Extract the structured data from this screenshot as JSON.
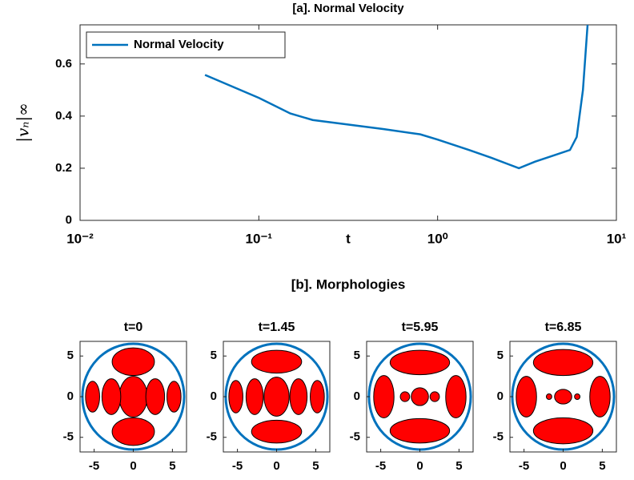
{
  "chart_data": [
    {
      "type": "line",
      "title": "[a]. Normal Velocity",
      "x_label": "t",
      "y_label": "|vₙ|∞",
      "x_scale": "log",
      "xlim": [
        0.01,
        10
      ],
      "xticks": [
        {
          "value": 0.01,
          "label": "10⁻²"
        },
        {
          "value": 0.1,
          "label": "10⁻¹"
        },
        {
          "value": 1,
          "label": "10⁰"
        },
        {
          "value": 10,
          "label": "10¹"
        }
      ],
      "ylim": [
        0,
        0.75
      ],
      "yticks": [
        0,
        0.2,
        0.4,
        0.6
      ],
      "legend": "upper left",
      "x": [
        0.05,
        0.1,
        0.15,
        0.2,
        0.5,
        0.8,
        1.0,
        1.5,
        2.0,
        2.85,
        3.5,
        4.5,
        5.5,
        6.0,
        6.5,
        6.9
      ],
      "series": [
        {
          "name": "Normal Velocity",
          "color": "#0072bd",
          "values": [
            0.558,
            0.47,
            0.41,
            0.385,
            0.35,
            0.33,
            0.31,
            0.27,
            0.24,
            0.2,
            0.225,
            0.25,
            0.27,
            0.32,
            0.5,
            0.75
          ]
        }
      ]
    },
    {
      "type": "morphology",
      "title": "t=0",
      "xlim": [
        -6.8,
        6.8
      ],
      "ylim": [
        -6.8,
        6.8
      ],
      "xticks": [
        -5,
        0,
        5
      ],
      "yticks": [
        -5,
        0,
        5
      ],
      "boundary_radius": 6.5,
      "boundary_color": "#0072bd",
      "color": "#ff0000",
      "blobs": [
        {
          "cx": 0,
          "cy": 4.3,
          "rx": 2.7,
          "ry": 1.7
        },
        {
          "cx": 0,
          "cy": -4.3,
          "rx": 2.7,
          "ry": 1.7
        },
        {
          "cx": 0,
          "cy": 0,
          "rx": 1.8,
          "ry": 2.5
        },
        {
          "cx": -2.8,
          "cy": 0,
          "rx": 1.2,
          "ry": 2.2
        },
        {
          "cx": 2.8,
          "cy": 0,
          "rx": 1.2,
          "ry": 2.2
        },
        {
          "cx": -5.2,
          "cy": 0,
          "rx": 0.9,
          "ry": 1.9
        },
        {
          "cx": 5.2,
          "cy": 0,
          "rx": 0.9,
          "ry": 1.9
        }
      ]
    },
    {
      "type": "morphology",
      "title": "t=1.45",
      "xlim": [
        -6.8,
        6.8
      ],
      "ylim": [
        -6.8,
        6.8
      ],
      "xticks": [
        -5,
        0,
        5
      ],
      "yticks": [
        -5,
        0,
        5
      ],
      "boundary_radius": 6.5,
      "boundary_color": "#0072bd",
      "color": "#ff0000",
      "blobs": [
        {
          "cx": 0,
          "cy": 4.3,
          "rx": 3.2,
          "ry": 1.4
        },
        {
          "cx": 0,
          "cy": -4.3,
          "rx": 3.2,
          "ry": 1.4
        },
        {
          "cx": 0,
          "cy": 0,
          "rx": 1.6,
          "ry": 2.4
        },
        {
          "cx": -2.8,
          "cy": 0,
          "rx": 1.1,
          "ry": 2.2
        },
        {
          "cx": 2.8,
          "cy": 0,
          "rx": 1.1,
          "ry": 2.2
        },
        {
          "cx": -5.2,
          "cy": 0,
          "rx": 0.9,
          "ry": 2.0
        },
        {
          "cx": 5.2,
          "cy": 0,
          "rx": 0.9,
          "ry": 2.0
        }
      ]
    },
    {
      "type": "morphology",
      "title": "t=5.95",
      "xlim": [
        -6.8,
        6.8
      ],
      "ylim": [
        -6.8,
        6.8
      ],
      "xticks": [
        -5,
        0,
        5
      ],
      "yticks": [
        -5,
        0,
        5
      ],
      "boundary_radius": 6.5,
      "boundary_color": "#0072bd",
      "color": "#ff0000",
      "blobs": [
        {
          "cx": 0,
          "cy": 4.2,
          "rx": 3.8,
          "ry": 1.5
        },
        {
          "cx": 0,
          "cy": -4.2,
          "rx": 3.8,
          "ry": 1.5
        },
        {
          "cx": -4.6,
          "cy": 0,
          "rx": 1.3,
          "ry": 2.6
        },
        {
          "cx": 4.6,
          "cy": 0,
          "rx": 1.3,
          "ry": 2.6
        },
        {
          "cx": 0,
          "cy": 0,
          "rx": 1.1,
          "ry": 1.1
        },
        {
          "cx": -1.9,
          "cy": 0,
          "rx": 0.6,
          "ry": 0.6
        },
        {
          "cx": 1.9,
          "cy": 0,
          "rx": 0.6,
          "ry": 0.6
        }
      ]
    },
    {
      "type": "morphology",
      "title": "t=6.85",
      "xlim": [
        -6.8,
        6.8
      ],
      "ylim": [
        -6.8,
        6.8
      ],
      "xticks": [
        -5,
        0,
        5
      ],
      "yticks": [
        -5,
        0,
        5
      ],
      "boundary_radius": 6.5,
      "boundary_color": "#0072bd",
      "color": "#ff0000",
      "blobs": [
        {
          "cx": 0,
          "cy": 4.2,
          "rx": 3.8,
          "ry": 1.6
        },
        {
          "cx": 0,
          "cy": -4.2,
          "rx": 3.8,
          "ry": 1.6
        },
        {
          "cx": -4.7,
          "cy": 0,
          "rx": 1.3,
          "ry": 2.5
        },
        {
          "cx": 4.7,
          "cy": 0,
          "rx": 1.3,
          "ry": 2.5
        },
        {
          "cx": 0,
          "cy": 0,
          "rx": 1.1,
          "ry": 0.9
        },
        {
          "cx": -1.8,
          "cy": 0,
          "rx": 0.35,
          "ry": 0.35
        },
        {
          "cx": 1.8,
          "cy": 0,
          "rx": 0.35,
          "ry": 0.35
        }
      ]
    }
  ],
  "section_title": "[b]. Morphologies"
}
